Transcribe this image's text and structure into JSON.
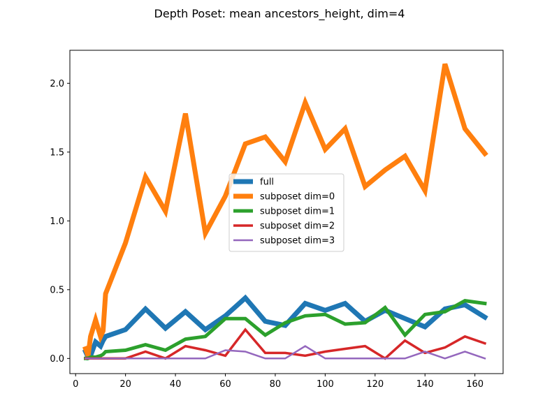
{
  "chart_data": {
    "type": "line",
    "title": "Depth Poset: mean ancestors_height, dim=4",
    "xlabel": "",
    "ylabel": "",
    "xlim": [
      -2.3,
      171.3
    ],
    "ylim": [
      -0.11,
      2.24
    ],
    "xticks": [
      0,
      20,
      40,
      60,
      80,
      100,
      120,
      140,
      160
    ],
    "yticks": [
      0.0,
      0.5,
      1.0,
      1.5,
      2.0
    ],
    "xtick_labels": [
      "0",
      "20",
      "40",
      "60",
      "80",
      "100",
      "120",
      "140",
      "160"
    ],
    "ytick_labels": [
      "0.0",
      "0.5",
      "1.0",
      "1.5",
      "2.0"
    ],
    "grid": false,
    "legend_position": "center",
    "x": [
      4,
      5,
      6,
      8,
      10,
      11,
      12,
      20,
      28,
      36,
      44,
      52,
      60,
      68,
      76,
      84,
      92,
      100,
      108,
      116,
      124,
      132,
      140,
      148,
      156,
      164
    ],
    "series": [
      {
        "name": "full",
        "color": "#1f77b4",
        "width": 7,
        "values": [
          0.05,
          0.01,
          0.02,
          0.12,
          0.09,
          0.13,
          0.16,
          0.21,
          0.36,
          0.22,
          0.34,
          0.21,
          0.31,
          0.44,
          0.27,
          0.24,
          0.4,
          0.35,
          0.4,
          0.27,
          0.35,
          0.29,
          0.23,
          0.36,
          0.39,
          0.3
        ]
      },
      {
        "name": "subposet dim=0",
        "color": "#ff7f0e",
        "width": 7,
        "values": [
          0.07,
          0.02,
          0.16,
          0.28,
          0.16,
          0.2,
          0.47,
          0.84,
          1.32,
          1.07,
          1.78,
          0.91,
          1.18,
          1.56,
          1.61,
          1.43,
          1.86,
          1.52,
          1.67,
          1.25,
          1.37,
          1.47,
          1.22,
          2.14,
          1.67,
          1.49
        ]
      },
      {
        "name": "subposet dim=1",
        "color": "#2ca02c",
        "width": 5,
        "values": [
          0.0,
          0.0,
          0.01,
          0.01,
          0.02,
          0.03,
          0.05,
          0.06,
          0.1,
          0.06,
          0.14,
          0.16,
          0.29,
          0.29,
          0.17,
          0.26,
          0.31,
          0.32,
          0.25,
          0.26,
          0.37,
          0.17,
          0.32,
          0.34,
          0.42,
          0.4
        ]
      },
      {
        "name": "subposet dim=2",
        "color": "#d62728",
        "width": 3.5,
        "values": [
          0.0,
          0.0,
          0.0,
          0.0,
          0.0,
          0.0,
          0.0,
          0.0,
          0.05,
          0.0,
          0.09,
          0.06,
          0.02,
          0.21,
          0.04,
          0.04,
          0.02,
          0.05,
          0.07,
          0.09,
          0.0,
          0.13,
          0.04,
          0.08,
          0.16,
          0.11
        ]
      },
      {
        "name": "subposet dim=3",
        "color": "#9467bd",
        "width": 2.5,
        "values": [
          0.0,
          0.0,
          0.0,
          0.0,
          0.0,
          0.0,
          0.0,
          0.0,
          0.0,
          0.0,
          0.0,
          0.0,
          0.06,
          0.05,
          0.0,
          0.0,
          0.09,
          0.0,
          0.0,
          0.0,
          0.0,
          0.0,
          0.05,
          0.0,
          0.05,
          0.0
        ]
      }
    ]
  }
}
